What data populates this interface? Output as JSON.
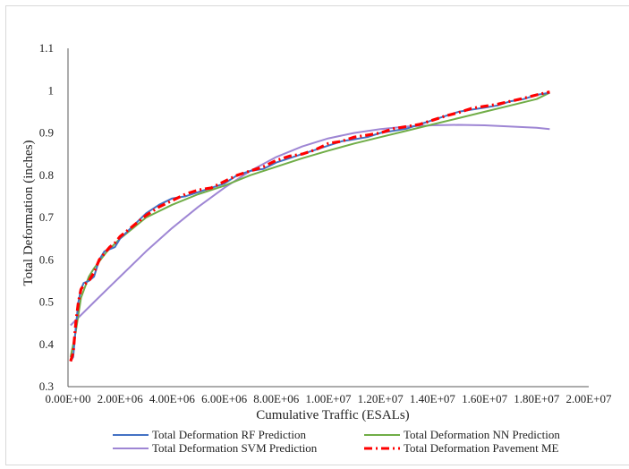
{
  "chart_data": {
    "type": "line",
    "title": "",
    "xlabel": "Cumulative Traffic (ESALs)",
    "ylabel": "Total Deformation (inches)",
    "xlim": [
      0,
      20000000
    ],
    "ylim": [
      0.3,
      1.1
    ],
    "x_ticks": [
      "0.00E+00",
      "2.00E+06",
      "4.00E+06",
      "6.00E+06",
      "8.00E+06",
      "1.00E+07",
      "1.20E+07",
      "1.40E+07",
      "1.60E+07",
      "1.80E+07",
      "2.00E+07"
    ],
    "y_ticks": [
      "0.3",
      "0.4",
      "0.5",
      "0.6",
      "0.7",
      "0.8",
      "0.9",
      "1",
      "1.1"
    ],
    "x_tick_values": [
      0,
      2000000,
      4000000,
      6000000,
      8000000,
      10000000,
      12000000,
      14000000,
      16000000,
      18000000,
      20000000
    ],
    "y_tick_values": [
      0.3,
      0.4,
      0.5,
      0.6,
      0.7,
      0.8,
      0.9,
      1.0,
      1.1
    ],
    "grid": false,
    "legend_position": "bottom",
    "series": [
      {
        "name": "Total Deformation RF Prediction",
        "color": "#4472c4",
        "style": "solid",
        "x": [
          100000,
          200000,
          300000,
          400000,
          500000,
          600000,
          800000,
          1000000,
          1200000,
          1400000,
          1600000,
          1800000,
          2000000,
          2500000,
          3000000,
          3500000,
          4000000,
          4500000,
          5000000,
          5500000,
          6000000,
          6500000,
          7000000,
          7500000,
          8000000,
          8500000,
          9000000,
          9500000,
          10000000,
          10500000,
          11000000,
          11500000,
          12000000,
          12500000,
          13000000,
          13500000,
          14000000,
          14500000,
          15000000,
          15500000,
          16000000,
          16500000,
          17000000,
          17500000,
          18000000,
          18500000
        ],
        "y": [
          0.36,
          0.37,
          0.44,
          0.5,
          0.53,
          0.545,
          0.55,
          0.56,
          0.6,
          0.62,
          0.625,
          0.63,
          0.65,
          0.68,
          0.71,
          0.73,
          0.745,
          0.75,
          0.76,
          0.77,
          0.78,
          0.8,
          0.81,
          0.815,
          0.83,
          0.84,
          0.85,
          0.86,
          0.87,
          0.88,
          0.885,
          0.89,
          0.9,
          0.905,
          0.91,
          0.92,
          0.93,
          0.94,
          0.95,
          0.955,
          0.96,
          0.965,
          0.975,
          0.98,
          0.99,
          0.995
        ]
      },
      {
        "name": "Total Deformation NN Prediction",
        "color": "#70ad47",
        "style": "solid",
        "x": [
          100000,
          300000,
          500000,
          800000,
          1000000,
          1500000,
          2000000,
          2500000,
          3000000,
          4000000,
          5000000,
          6000000,
          7000000,
          8000000,
          9000000,
          10000000,
          11000000,
          12000000,
          13000000,
          14000000,
          15000000,
          16000000,
          17000000,
          18000000,
          18500000
        ],
        "y": [
          0.37,
          0.43,
          0.51,
          0.56,
          0.58,
          0.62,
          0.65,
          0.675,
          0.7,
          0.73,
          0.755,
          0.775,
          0.8,
          0.82,
          0.84,
          0.858,
          0.875,
          0.89,
          0.905,
          0.92,
          0.935,
          0.95,
          0.965,
          0.98,
          0.995
        ]
      },
      {
        "name": "Total Deformation SVM Prediction",
        "color": "#9e86d4",
        "style": "solid",
        "x": [
          100000,
          1000000,
          2000000,
          3000000,
          4000000,
          5000000,
          6000000,
          7000000,
          8000000,
          9000000,
          10000000,
          11000000,
          12000000,
          13000000,
          14000000,
          15000000,
          16000000,
          17000000,
          18000000,
          18500000
        ],
        "y": [
          0.445,
          0.5,
          0.56,
          0.62,
          0.675,
          0.725,
          0.77,
          0.81,
          0.843,
          0.868,
          0.887,
          0.9,
          0.909,
          0.915,
          0.918,
          0.919,
          0.918,
          0.915,
          0.912,
          0.909
        ]
      },
      {
        "name": "Total Deformation Pavement ME",
        "color": "#ff0000",
        "style": "dashdot",
        "x": [
          100000,
          200000,
          300000,
          400000,
          500000,
          600000,
          800000,
          1000000,
          1200000,
          1400000,
          1600000,
          1800000,
          2000000,
          2500000,
          3000000,
          3500000,
          4000000,
          4500000,
          5000000,
          5500000,
          6000000,
          6500000,
          7000000,
          7500000,
          8000000,
          8500000,
          9000000,
          9500000,
          10000000,
          10500000,
          11000000,
          11500000,
          12000000,
          12500000,
          13000000,
          13500000,
          14000000,
          14500000,
          15000000,
          15500000,
          16000000,
          16500000,
          17000000,
          17500000,
          18000000,
          18500000
        ],
        "y": [
          0.36,
          0.38,
          0.45,
          0.5,
          0.53,
          0.54,
          0.55,
          0.57,
          0.6,
          0.615,
          0.63,
          0.64,
          0.655,
          0.68,
          0.705,
          0.725,
          0.74,
          0.755,
          0.765,
          0.77,
          0.785,
          0.8,
          0.81,
          0.82,
          0.835,
          0.845,
          0.85,
          0.86,
          0.875,
          0.88,
          0.89,
          0.895,
          0.9,
          0.91,
          0.915,
          0.92,
          0.93,
          0.94,
          0.948,
          0.958,
          0.963,
          0.968,
          0.975,
          0.982,
          0.99,
          0.997
        ]
      }
    ]
  }
}
